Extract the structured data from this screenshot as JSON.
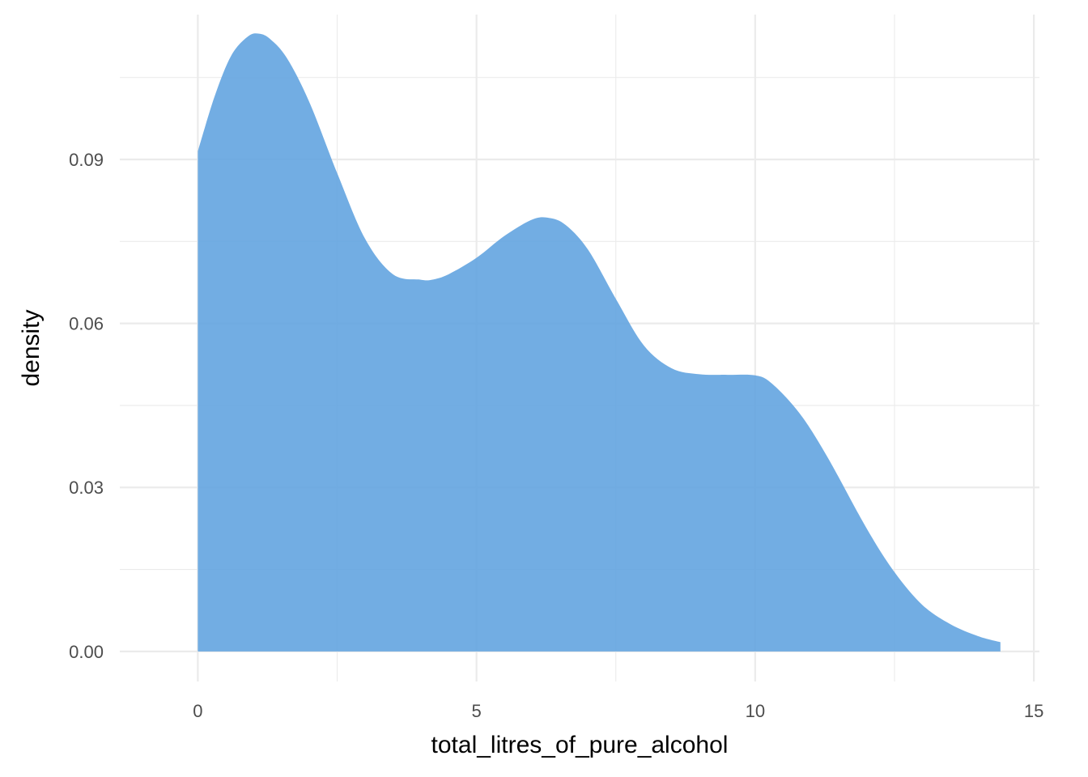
{
  "chart_data": {
    "type": "area",
    "title": "",
    "xlabel": "total_litres_of_pure_alcohol",
    "ylabel": "density",
    "xlim": [
      -1.4,
      15.1
    ],
    "ylim": [
      -0.0055,
      0.1165
    ],
    "x_ticks": [
      0,
      5,
      10,
      15
    ],
    "x_tick_labels": [
      "0",
      "5",
      "10",
      "15"
    ],
    "y_ticks": [
      0.0,
      0.03,
      0.06,
      0.09
    ],
    "y_tick_labels": [
      "0.00",
      "0.03",
      "0.06",
      "0.09"
    ],
    "grid": true,
    "legend": "none",
    "fill_color": "#5ea2df",
    "series": [
      {
        "x": [
          0,
          0.3,
          0.6,
          0.9,
          1.1,
          1.3,
          1.6,
          2.0,
          2.5,
          3.0,
          3.5,
          4.0,
          4.2,
          4.5,
          5.0,
          5.5,
          6.0,
          6.3,
          6.6,
          7.0,
          7.5,
          8.0,
          8.5,
          9.0,
          9.5,
          10.0,
          10.3,
          10.8,
          11.3,
          12.0,
          12.5,
          13.0,
          13.5,
          14.0,
          14.4
        ],
        "y": [
          0.0915,
          0.1015,
          0.109,
          0.1125,
          0.113,
          0.112,
          0.1085,
          0.1005,
          0.0875,
          0.0755,
          0.069,
          0.068,
          0.068,
          0.069,
          0.072,
          0.076,
          0.079,
          0.0793,
          0.078,
          0.0735,
          0.0645,
          0.056,
          0.0518,
          0.0507,
          0.0506,
          0.0505,
          0.049,
          0.0435,
          0.0355,
          0.0225,
          0.0145,
          0.0085,
          0.005,
          0.0028,
          0.0017
        ]
      }
    ]
  }
}
